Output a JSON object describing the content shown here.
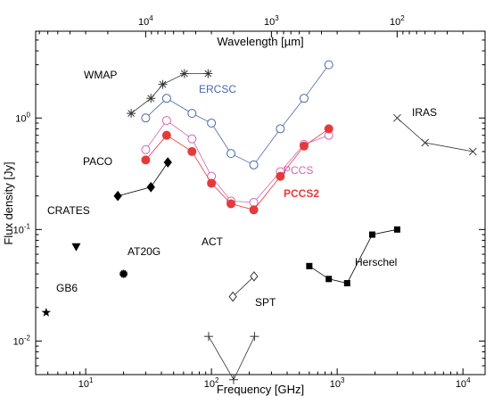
{
  "chart_data": {
    "type": "scatter",
    "xlabel": "Frequency [GHz]",
    "ylabel": "Flux density [Jy]",
    "top_xlabel": "Wavelength [µm]",
    "x_scale": "log",
    "y_scale": "log",
    "xlim": [
      4,
      15000
    ],
    "ylim": [
      0.005,
      6
    ],
    "x_ticks": [
      {
        "value": 10,
        "label": "10"
      },
      {
        "value": 100,
        "label": "10"
      },
      {
        "value": 1000,
        "label": "10"
      },
      {
        "value": 10000,
        "label": "10"
      }
    ],
    "x_tick_exponents": [
      "1",
      "2",
      "3",
      "4"
    ],
    "y_ticks": [
      {
        "value": 0.01,
        "label": "10"
      },
      {
        "value": 0.1,
        "label": "10"
      },
      {
        "value": 1,
        "label": "10"
      }
    ],
    "y_tick_exponents": [
      "-2",
      "-1",
      "0"
    ],
    "top_ticks": [
      {
        "wavelength_um": 10000,
        "label": "10"
      },
      {
        "wavelength_um": 1000,
        "label": "10"
      },
      {
        "wavelength_um": 100,
        "label": "10"
      }
    ],
    "top_tick_exponents": [
      "4",
      "3",
      "2"
    ],
    "series": [
      {
        "name": "WMAP",
        "color": "#333333",
        "marker": "asterisk",
        "line": true,
        "x": [
          23,
          33,
          41,
          61,
          94
        ],
        "y": [
          1.1,
          1.5,
          2.0,
          2.5,
          2.5
        ]
      },
      {
        "name": "ERCSC",
        "color": "#4a66aa",
        "marker": "open-circle",
        "line": true,
        "x": [
          30,
          44,
          70,
          100,
          143,
          217,
          353,
          545,
          857
        ],
        "y": [
          1.0,
          1.5,
          1.1,
          0.9,
          0.48,
          0.38,
          0.8,
          1.5,
          3.0
        ]
      },
      {
        "name": "PCCS",
        "color": "#d066b6",
        "marker": "open-circle",
        "line": true,
        "x": [
          30,
          44,
          70,
          100,
          143,
          217,
          353,
          545,
          857
        ],
        "y": [
          0.52,
          0.95,
          0.65,
          0.3,
          0.18,
          0.175,
          0.33,
          0.58,
          0.7
        ]
      },
      {
        "name": "PCCS2",
        "color": "#e63a3a",
        "marker": "filled-circle",
        "line": true,
        "x": [
          30,
          44,
          70,
          100,
          143,
          217,
          353,
          545,
          857
        ],
        "y": [
          0.42,
          0.7,
          0.5,
          0.26,
          0.17,
          0.15,
          0.3,
          0.56,
          0.8
        ]
      },
      {
        "name": "PACO",
        "color": "#000000",
        "marker": "filled-diamond",
        "line": true,
        "x": [
          18,
          33,
          45
        ],
        "y": [
          0.2,
          0.24,
          0.4
        ]
      },
      {
        "name": "CRATES",
        "color": "#000000",
        "marker": "filled-triangle-down",
        "line": false,
        "x": [
          8.4
        ],
        "y": [
          0.07
        ]
      },
      {
        "name": "AT20G",
        "color": "#000000",
        "marker": "star-burst",
        "line": false,
        "x": [
          20
        ],
        "y": [
          0.04
        ]
      },
      {
        "name": "GB6",
        "color": "#000000",
        "marker": "star",
        "line": false,
        "x": [
          4.85
        ],
        "y": [
          0.018
        ]
      },
      {
        "name": "ACT",
        "color": "#333333",
        "marker": "open-diamond",
        "line": true,
        "x": [
          148,
          218
        ],
        "y": [
          0.025,
          0.038
        ]
      },
      {
        "name": "SPT",
        "color": "#333333",
        "marker": "plus",
        "line": true,
        "x": [
          95,
          150,
          220
        ],
        "y": [
          0.011,
          0.0045,
          0.011
        ]
      },
      {
        "name": "Herschel",
        "color": "#000000",
        "marker": "filled-square",
        "line": true,
        "x": [
          600,
          857,
          1200,
          1900,
          3000
        ],
        "y": [
          0.047,
          0.036,
          0.033,
          0.09,
          0.1
        ]
      },
      {
        "name": "IRAS",
        "color": "#333333",
        "marker": "cross",
        "line": true,
        "x": [
          3000,
          5000,
          12000
        ],
        "y": [
          1.0,
          0.6,
          0.5
        ]
      }
    ]
  }
}
